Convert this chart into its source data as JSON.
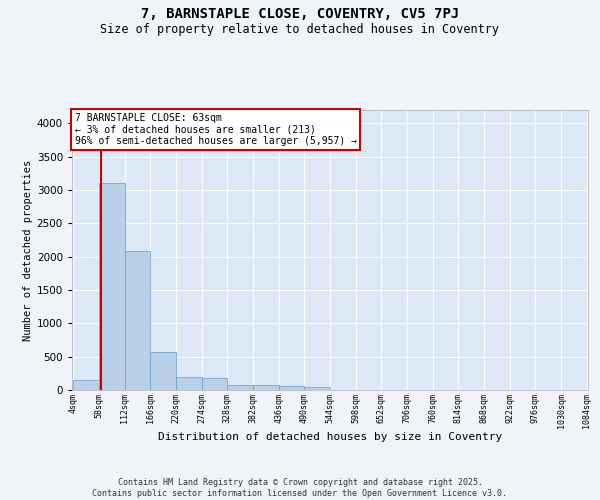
{
  "title": "7, BARNSTAPLE CLOSE, COVENTRY, CV5 7PJ",
  "subtitle": "Size of property relative to detached houses in Coventry",
  "xlabel": "Distribution of detached houses by size in Coventry",
  "ylabel": "Number of detached properties",
  "bar_color": "#b8d0e8",
  "bar_edge_color": "#6699cc",
  "background_color": "#dce8f5",
  "grid_color": "#ffffff",
  "fig_background": "#f0f4f8",
  "annotation_text": "7 BARNSTAPLE CLOSE: 63sqm\n← 3% of detached houses are smaller (213)\n96% of semi-detached houses are larger (5,957) →",
  "vline_x": 63,
  "vline_color": "#cc0000",
  "bin_edges": [
    4,
    58,
    112,
    166,
    220,
    274,
    328,
    382,
    436,
    490,
    544,
    598,
    652,
    706,
    760,
    814,
    868,
    922,
    976,
    1030,
    1084
  ],
  "bin_labels": [
    "4sqm",
    "58sqm",
    "112sqm",
    "166sqm",
    "220sqm",
    "274sqm",
    "328sqm",
    "382sqm",
    "436sqm",
    "490sqm",
    "544sqm",
    "598sqm",
    "652sqm",
    "706sqm",
    "760sqm",
    "814sqm",
    "868sqm",
    "922sqm",
    "976sqm",
    "1030sqm",
    "1084sqm"
  ],
  "bar_heights": [
    150,
    3100,
    2080,
    570,
    190,
    185,
    80,
    70,
    55,
    50,
    0,
    0,
    0,
    0,
    0,
    0,
    0,
    0,
    0,
    0
  ],
  "ylim": [
    0,
    4200
  ],
  "yticks": [
    0,
    500,
    1000,
    1500,
    2000,
    2500,
    3000,
    3500,
    4000
  ],
  "footer_text": "Contains HM Land Registry data © Crown copyright and database right 2025.\nContains public sector information licensed under the Open Government Licence v3.0.",
  "figsize": [
    6.0,
    5.0
  ],
  "dpi": 100
}
